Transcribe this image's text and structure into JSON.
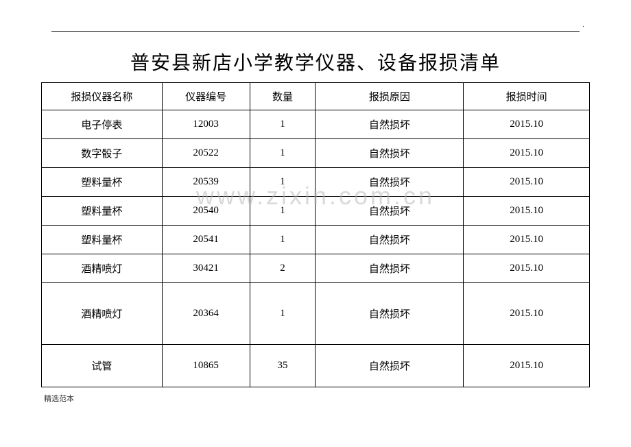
{
  "page_indicator": ".",
  "title": "普安县新店小学教学仪器、设备报损清单",
  "watermark": "www.zixin.com.cn",
  "footer": "精选范本",
  "table": {
    "headers": {
      "name": "报损仪器名称",
      "id": "仪器编号",
      "qty": "数量",
      "reason": "报损原因",
      "date": "报损时间"
    },
    "rows": [
      {
        "name": "电子停表",
        "id": "12003",
        "qty": "1",
        "reason": "自然损坏",
        "date": "2015.10",
        "cls": ""
      },
      {
        "name": "数字骰子",
        "id": "20522",
        "qty": "1",
        "reason": "自然损坏",
        "date": "2015.10",
        "cls": ""
      },
      {
        "name": "塑料量杯",
        "id": "20539",
        "qty": "1",
        "reason": "自然损坏",
        "date": "2015.10",
        "cls": ""
      },
      {
        "name": "塑料量杯",
        "id": "20540",
        "qty": "1",
        "reason": "自然损坏",
        "date": "2015.10",
        "cls": ""
      },
      {
        "name": "塑料量杯",
        "id": "20541",
        "qty": "1",
        "reason": "自然损坏",
        "date": "2015.10",
        "cls": ""
      },
      {
        "name": "酒精喷灯",
        "id": "30421",
        "qty": "2",
        "reason": "自然损坏",
        "date": "2015.10",
        "cls": ""
      },
      {
        "name": "酒精喷灯",
        "id": "20364",
        "qty": "1",
        "reason": "自然损坏",
        "date": "2015.10",
        "cls": "row-tall"
      },
      {
        "name": "试管",
        "id": "10865",
        "qty": "35",
        "reason": "自然损坏",
        "date": "2015.10",
        "cls": "row-medium"
      }
    ]
  }
}
